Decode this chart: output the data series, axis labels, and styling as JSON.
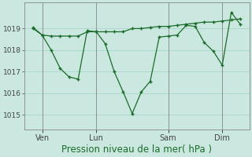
{
  "bg_color": "#cbe8e0",
  "grid_color": "#a8d5c8",
  "line_color": "#1a6b2a",
  "xlabel": "Pression niveau de la mer( hPa )",
  "xlabel_fontsize": 8.5,
  "xlabel_color": "#1a6b2a",
  "ylim": [
    1014.3,
    1020.2
  ],
  "yticks": [
    1015,
    1016,
    1017,
    1018,
    1019
  ],
  "ytick_fontsize": 6.5,
  "xtick_labels": [
    "Ven",
    "Lun",
    "Sam",
    "Dim"
  ],
  "xtick_positions": [
    1,
    4,
    8,
    11
  ],
  "xtick_fontsize": 7,
  "vline_x": [
    1,
    4,
    8,
    11
  ],
  "line1_x": [
    0.5,
    1.0,
    1.5,
    2.0,
    2.5,
    3.0,
    3.5,
    4.0,
    4.5,
    5.0,
    5.5,
    6.0,
    6.5,
    7.0,
    7.5,
    8.0,
    8.5,
    9.0,
    9.5,
    10.0,
    10.5,
    11.0,
    11.5,
    12.0
  ],
  "line1_y": [
    1019.0,
    1018.7,
    1018.65,
    1018.65,
    1018.65,
    1018.65,
    1018.85,
    1018.85,
    1018.85,
    1018.85,
    1018.85,
    1019.0,
    1019.0,
    1019.05,
    1019.1,
    1019.1,
    1019.15,
    1019.2,
    1019.25,
    1019.3,
    1019.3,
    1019.35,
    1019.4,
    1019.45
  ],
  "line2_x": [
    0.5,
    1.0,
    1.5,
    2.0,
    2.5,
    3.0,
    3.5,
    4.0,
    4.5,
    5.0,
    5.5,
    6.0,
    6.5,
    7.0,
    7.5,
    8.0,
    8.5,
    9.0,
    9.5,
    10.0,
    10.5,
    11.0,
    11.5,
    12.0
  ],
  "line2_y": [
    1019.05,
    1018.7,
    1018.0,
    1017.15,
    1016.75,
    1016.65,
    1018.9,
    1018.85,
    1018.3,
    1017.0,
    1016.05,
    1015.05,
    1016.05,
    1016.55,
    1018.6,
    1018.65,
    1018.7,
    1019.15,
    1019.1,
    1018.35,
    1017.95,
    1017.3,
    1019.75,
    1019.2
  ],
  "xlim": [
    0.0,
    12.5
  ],
  "figsize": [
    3.2,
    2.0
  ],
  "dpi": 100
}
